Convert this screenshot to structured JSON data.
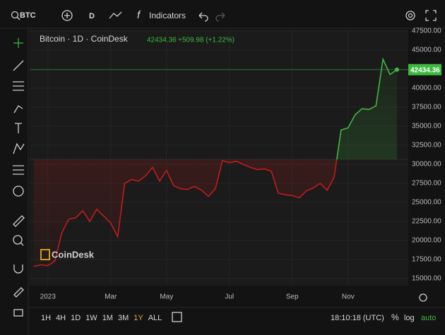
{
  "ui": {
    "symbol": "BTC",
    "interval": "D",
    "indicators": "Indicators",
    "watermark": "CoinDesk",
    "ranges": [
      "1H",
      "4H",
      "1D",
      "1W",
      "1M",
      "3M",
      "1Y",
      "ALL"
    ],
    "clock": "18:10:18 (UTC)",
    "percent": "%",
    "log": "log",
    "auto": "auto"
  },
  "chart_data": {
    "type": "line",
    "title": "Bitcoin · 1D · CoinDesk",
    "change": "+509.98 (+1.22%)",
    "categories": [
      null,
      null,
      "2023",
      null,
      null,
      null,
      null,
      null,
      null,
      null,
      null,
      "Mar",
      null,
      null,
      null,
      null,
      null,
      null,
      null,
      "May",
      null,
      null,
      null,
      null,
      null,
      null,
      null,
      null,
      "Jul",
      null,
      null,
      null,
      null,
      null,
      null,
      null,
      null,
      "Sep",
      null,
      null,
      null,
      null,
      null,
      null,
      null,
      "Nov",
      null,
      null,
      null,
      null,
      null,
      null,
      null
    ],
    "series": [
      {
        "name": "BTC",
        "color_up": "#3fb83f",
        "color_down": "#c21b1b",
        "values": [
          16600,
          16800,
          16700,
          17300,
          21000,
          22800,
          23000,
          23900,
          22500,
          24100,
          23200,
          22300,
          20500,
          27500,
          28000,
          27800,
          28500,
          29600,
          27800,
          29200,
          27200,
          26800,
          26700,
          27100,
          26600,
          25800,
          26800,
          30500,
          30200,
          30400,
          30000,
          29600,
          29300,
          29400,
          29100,
          26200,
          26000,
          25900,
          25600,
          26500,
          26900,
          27500,
          26600,
          28300,
          34500,
          34800,
          36500,
          37300,
          37200,
          37700,
          43800,
          41800,
          42434.36
        ]
      }
    ],
    "baseline": 30650,
    "ylim": [
      14070,
      47690
    ],
    "yticks": [
      {
        "value": 15000,
        "label": "15000.00"
      },
      {
        "value": 17500,
        "label": "17500.00"
      },
      {
        "value": 20000,
        "label": "20000.00"
      },
      {
        "value": 22500,
        "label": "22500.00"
      },
      {
        "value": 25000,
        "label": "25000.00"
      },
      {
        "value": 27500,
        "label": "27500.00"
      },
      {
        "value": 30000,
        "label": "30000.00"
      },
      {
        "value": 32500,
        "label": "32500.00"
      },
      {
        "value": 35000,
        "label": "35000.00"
      },
      {
        "value": 37500,
        "label": "37500.00"
      },
      {
        "value": 40000,
        "label": "40000.00"
      },
      {
        "value": 42500,
        "label": "42500.00"
      },
      {
        "value": 45000,
        "label": "45000.00"
      },
      {
        "value": 47500,
        "label": "47500.00"
      }
    ],
    "grid": true
  }
}
